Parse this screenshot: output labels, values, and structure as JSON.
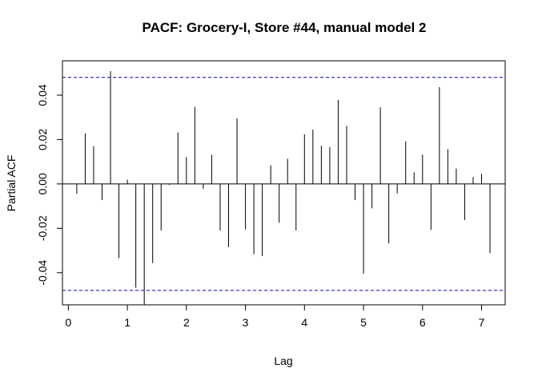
{
  "chart_data": {
    "type": "bar",
    "title": "PACF: Grocery-I, Store #44, manual model 2",
    "xlabel": "Lag",
    "ylabel": "Partial ACF",
    "xlim": [
      -0.1,
      7.4
    ],
    "ylim": [
      -0.0545,
      0.0555
    ],
    "xticks": [
      0,
      1,
      2,
      3,
      4,
      5,
      6,
      7
    ],
    "xtick_labels": [
      "0",
      "1",
      "2",
      "3",
      "4",
      "5",
      "6",
      "7"
    ],
    "yticks": [
      -0.04,
      -0.02,
      0.0,
      0.02,
      0.04
    ],
    "ytick_labels": [
      "-0.04",
      "-0.02",
      "0.00",
      "0.02",
      "0.04"
    ],
    "confidence_bound": 0.048,
    "bar_color": "#000000",
    "bound_color": "#0000cc",
    "grid": false,
    "x": [
      0.1429,
      0.2857,
      0.4286,
      0.5714,
      0.7143,
      0.8571,
      1.0,
      1.1429,
      1.2857,
      1.4286,
      1.5714,
      1.7143,
      1.8571,
      2.0,
      2.1429,
      2.2857,
      2.4286,
      2.5714,
      2.7143,
      2.8571,
      3.0,
      3.1429,
      3.2857,
      3.4286,
      3.5714,
      3.7143,
      3.8571,
      4.0,
      4.1429,
      4.2857,
      4.4286,
      4.5714,
      4.7143,
      4.8571,
      5.0,
      5.1429,
      5.2857,
      5.4286,
      5.5714,
      5.7143,
      5.8571,
      6.0,
      6.1429,
      6.2857,
      6.4286,
      6.5714,
      6.7143,
      6.8571,
      7.0,
      7.1429
    ],
    "values": [
      -0.0045,
      0.0228,
      0.017,
      -0.0073,
      0.0508,
      -0.0335,
      0.0019,
      -0.0468,
      -0.0545,
      -0.0357,
      -0.021,
      -0.0005,
      0.0232,
      0.0121,
      0.0347,
      -0.0022,
      0.0131,
      -0.021,
      -0.0285,
      0.0295,
      -0.0205,
      -0.0317,
      -0.0325,
      0.0084,
      -0.0175,
      0.0113,
      -0.021,
      0.0223,
      0.0245,
      0.0172,
      0.0166,
      0.0379,
      0.0262,
      -0.0073,
      -0.0405,
      -0.011,
      0.0345,
      -0.0268,
      -0.0043,
      0.0192,
      0.0052,
      0.0132,
      -0.0207,
      0.0436,
      0.0157,
      0.0069,
      -0.0163,
      0.0031,
      0.0045,
      -0.0312
    ]
  }
}
